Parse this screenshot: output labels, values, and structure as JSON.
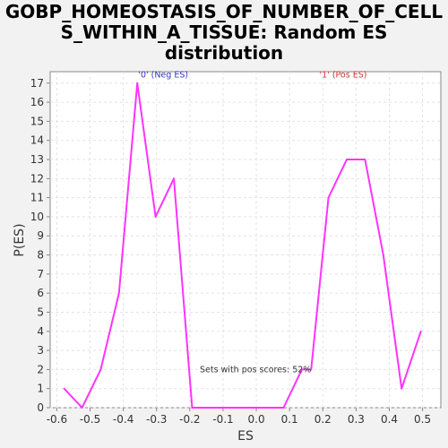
{
  "chart_data": {
    "type": "line",
    "title_lines": [
      "GOBP_HOMEOSTASIS_OF_NUMBER_OF_CELL",
      "S_WITHIN_A_TISSUE: Random ES",
      "distribution"
    ],
    "xlabel": "ES",
    "ylabel": "P(ES)",
    "xlim": [
      -0.62,
      0.555
    ],
    "ylim": [
      0,
      17.6
    ],
    "xticks": [
      -0.6,
      -0.5,
      -0.4,
      -0.3,
      -0.2,
      -0.1,
      0.0,
      0.1,
      0.2,
      0.3,
      0.4,
      0.5
    ],
    "xtick_labels": [
      "-0.6",
      "-0.5",
      "-0.4",
      "-0.3",
      "-0.2",
      "-0.1",
      "0.0",
      "0.1",
      "0.2",
      "0.3",
      "0.4",
      "0.5"
    ],
    "yticks": [
      0,
      1,
      2,
      3,
      4,
      5,
      6,
      7,
      8,
      9,
      10,
      11,
      12,
      13,
      14,
      15,
      16,
      17
    ],
    "grid": true,
    "line_color": "#ff33ff",
    "x": [
      -0.578,
      -0.524,
      -0.468,
      -0.413,
      -0.358,
      -0.303,
      -0.248,
      -0.193,
      -0.138,
      -0.083,
      -0.028,
      0.027,
      0.082,
      0.137,
      0.165,
      0.217,
      0.272,
      0.327,
      0.382,
      0.437,
      0.495
    ],
    "y": [
      1,
      0,
      2,
      6,
      17,
      10,
      12,
      0,
      0,
      0,
      0,
      0,
      0,
      2,
      2,
      11,
      13,
      13,
      8,
      1,
      4
    ],
    "annotations": [
      {
        "text": "'0' (Neg ES)",
        "x": -0.355,
        "y": 17.3,
        "color": "#3333cc"
      },
      {
        "text": "'1' (Pos ES)",
        "x": 0.19,
        "y": 17.3,
        "color": "#cc3333"
      },
      {
        "text": "Sets with pos scores: 52%",
        "x": -0.17,
        "y": 1.85,
        "color": "#333333"
      }
    ]
  }
}
